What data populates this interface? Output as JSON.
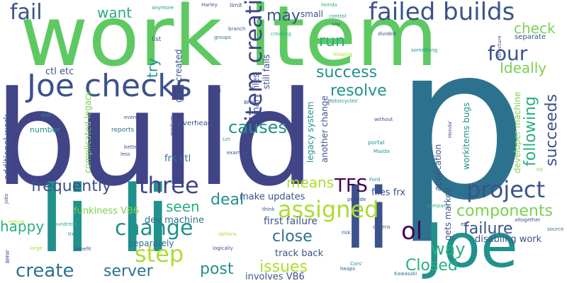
{
  "palette": {
    "background": "#ffffff",
    "dark_purple": "#440154",
    "indigo": "#3b528b",
    "slate_blue": "#414487",
    "steel_blue": "#2c728e",
    "teal": "#21918c",
    "sea_green": "#28ae80",
    "green": "#5ec962",
    "light_green": "#7ad151",
    "lime": "#addc30",
    "yellow": "#fde725"
  },
  "words": {
    "build": "build",
    "p": "p",
    "work_item": "work item",
    "li_l": "li li",
    "li_r": "li",
    "joe": "Joe",
    "joe_checks": "Joe checks",
    "failed_builds": "failed builds",
    "fail": "fail",
    "want": "want",
    "four": "four",
    "check": "check",
    "run": "run",
    "may": "may",
    "item_creation": "item creation",
    "ideally": "Ideally",
    "following": "following",
    "succeeds": "succeeds",
    "success": "success",
    "resolve": "resolve",
    "causes": "causes",
    "means": "means",
    "tfs": "TFS",
    "project": "project",
    "three": "three",
    "deal": "deal",
    "change": "change",
    "assigned": "assigned",
    "ol": "ol",
    "step": "step",
    "seen": "seen",
    "failure": "failure",
    "components": "components",
    "close": "close",
    "way": "way",
    "post": "post",
    "issues": "issues",
    "closed": "Closed",
    "create": "create",
    "server": "server",
    "happy": "happy",
    "frequently": "frequently",
    "try": "try",
    "ctl_etc": "ctl etc",
    "additional_work": "additional work",
    "gets_created": "gets created",
    "binary_files": "binary files",
    "still_fails": "still fails",
    "legacy_system": "legacy system",
    "another_change": "another change",
    "complicated_legacy": "complicated legacy",
    "frx_ctl": "frx ctl",
    "overhead": "overhead",
    "reports": "reports",
    "number": "number",
    "funkiness_vb6": "funkiness VB6",
    "dev_machine": "dev machine",
    "separately": "separately",
    "make_updates": "make updates",
    "files_frx": "files frx",
    "first_failure": "first failure",
    "track_back": "track back",
    "involves_vb6": "involves VB6",
    "disabling_work": "disabling work",
    "gets_marked": "gets marked",
    "application": "application",
    "workitems_bugs": "workitems bugs",
    "developer_machine": "developer machine",
    "anymore": "anymore",
    "harley": "Harley",
    "limit": "limit",
    "honda": "Honda",
    "say": "say",
    "small": "small",
    "control": "control",
    "branch": "branch",
    "groups": "groups",
    "creating": "creating",
    "divided": "divided",
    "separate": "separate",
    "list": "list",
    "missing": "missing",
    "something": "something",
    "structure": "structure",
    "will": "will",
    "bmw": "BMW",
    "motorcycles": "Motorcycles'",
    "end": "end",
    "even": "even",
    "without": "without",
    "honda_q": "Honda'",
    "medium": "medium",
    "let": "Let",
    "better": "better",
    "less": "less",
    "example": "example",
    "portal": "portal",
    "mazda": "Mazda",
    "ford": "Ford",
    "hit": "hit",
    "jobs": "jobs",
    "hitting": "hitting",
    "think": "think",
    "provide": "provide",
    "company": "company",
    "altogether": "altogether",
    "source": "source",
    "etc": "etc",
    "hundreds": "hundreds",
    "tree": "tree",
    "options": "options",
    "dozens": "dozens",
    "risk": "risk",
    "large": "large",
    "benefit": "benefit",
    "logically": "logically",
    "bmw_q": "BMW'",
    "cars": "Cars'",
    "heaps": "heaps",
    "kawasaki": "Kawasaki"
  }
}
